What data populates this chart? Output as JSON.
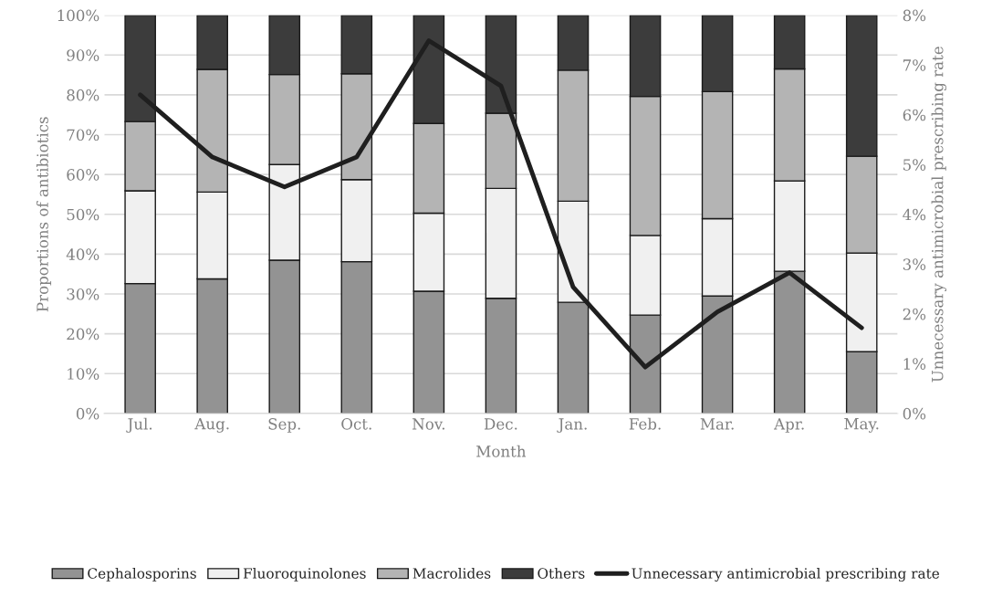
{
  "chart_data": {
    "type": "bar",
    "stacked": true,
    "xlabel": "Month",
    "ylabel": "Proportions of antibiotics",
    "y2label": "Unnecessary antimicrobial prescribing rate",
    "categories": [
      "Jul.",
      "Aug.",
      "Sep.",
      "Oct.",
      "Nov.",
      "Dec.",
      "Jan.",
      "Feb.",
      "Mar.",
      "Apr.",
      "May."
    ],
    "series": [
      {
        "name": "Cephalosporins",
        "color": "#939393",
        "values": [
          32.6,
          33.8,
          38.5,
          38.1,
          30.7,
          28.9,
          27.9,
          24.7,
          29.5,
          35.7,
          15.5
        ]
      },
      {
        "name": "Fluoroquinolones",
        "color": "#f0f0f0",
        "values": [
          23.3,
          21.8,
          24.0,
          20.6,
          19.6,
          27.6,
          25.4,
          20.0,
          19.4,
          22.7,
          24.8
        ]
      },
      {
        "name": "Macrolides",
        "color": "#b4b4b4",
        "values": [
          17.4,
          30.8,
          22.6,
          26.6,
          22.5,
          18.9,
          32.9,
          34.9,
          31.9,
          28.1,
          24.3
        ]
      },
      {
        "name": "Others",
        "color": "#3c3c3c",
        "values": [
          26.7,
          13.6,
          14.9,
          14.7,
          27.2,
          24.6,
          13.8,
          20.4,
          19.2,
          13.5,
          35.4
        ]
      },
      {
        "name": "Unnecessary antimicrobial prescribing rate",
        "type": "line",
        "axis": "y2",
        "color": "#1f1f1f",
        "values": [
          6.4,
          5.15,
          4.55,
          5.15,
          7.49,
          6.58,
          2.54,
          0.93,
          2.04,
          2.83,
          1.72
        ]
      }
    ],
    "ylim": [
      0,
      100
    ],
    "yticks": [
      {
        "value": 0,
        "label": "0%"
      },
      {
        "value": 10,
        "label": "10%"
      },
      {
        "value": 20,
        "label": "20%"
      },
      {
        "value": 30,
        "label": "30%"
      },
      {
        "value": 40,
        "label": "40%"
      },
      {
        "value": 50,
        "label": "50%"
      },
      {
        "value": 60,
        "label": "60%"
      },
      {
        "value": 70,
        "label": "70%"
      },
      {
        "value": 80,
        "label": "80%"
      },
      {
        "value": 90,
        "label": "90%"
      },
      {
        "value": 100,
        "label": "100%"
      }
    ],
    "y2lim": [
      0,
      8
    ],
    "y2ticks": [
      {
        "value": 0,
        "label": "0%"
      },
      {
        "value": 1,
        "label": "1%"
      },
      {
        "value": 2,
        "label": "2%"
      },
      {
        "value": 3,
        "label": "3%"
      },
      {
        "value": 4,
        "label": "4%"
      },
      {
        "value": 5,
        "label": "5%"
      },
      {
        "value": 6,
        "label": "6%"
      },
      {
        "value": 7,
        "label": "7%"
      },
      {
        "value": 8,
        "label": "8%"
      }
    ],
    "grid": "y",
    "legend": "bottom",
    "marker": "none",
    "line_style": "solid"
  }
}
